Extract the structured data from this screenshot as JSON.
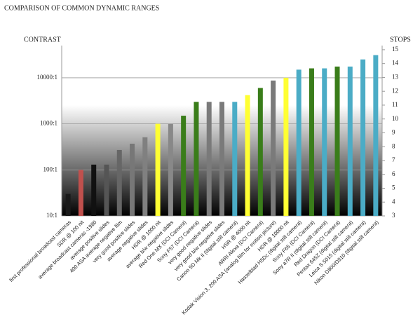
{
  "chart_data": {
    "type": "bar",
    "title": "COMPARISON OF COMMON DYNAMIC RANGES",
    "y_label": "CONTRAST",
    "y2_label": "STOPS",
    "log_scale": true,
    "grid": true,
    "ylim": [
      10,
      50000
    ],
    "yticks": [
      {
        "value": 10,
        "label": "10:1"
      },
      {
        "value": 100,
        "label": "100:1"
      },
      {
        "value": 1000,
        "label": "1000:1"
      },
      {
        "value": 10000,
        "label": "10000:1"
      }
    ],
    "y2lim": [
      3,
      15.3
    ],
    "y2ticks": [
      3,
      4,
      5,
      6,
      7,
      8,
      9,
      10,
      11,
      12,
      13,
      14,
      15
    ],
    "categories": [
      "first professional broadcast cameras",
      "SDR @ 100 nit",
      "average broadcast cameras -1980",
      "average positive slides",
      "400 ASA average negative film",
      "very good positive slides",
      "average negative slides",
      "HDR @ 1000 nit",
      "average b/w negative slides",
      "Red One MX (DCI Camera)",
      "Sony F57 (DCI Camera)",
      "very good negative slides",
      "very good b/w negative slides",
      "Canon 5D Mk II (digital still camera)",
      "HSR @ 4000 nit",
      "ARRI Alexa (DCI Camera)",
      "Kodak Vision 3, 200 ASA (analog film for motion picture)",
      "HDR @ 10000 nit",
      "Hasselblad H5Dc (digital still camera)",
      "Sony F65 (DCI Camera)",
      "Sony a7R II (digital still camera)",
      "Red Dragon (DCI Camera)",
      "Pentax 645Z (digital still camera)",
      "Leica S 5015 (digital still camera)",
      "Nikon D800/D810 (digital still camera)"
    ],
    "values": [
      30,
      100,
      130,
      130,
      270,
      370,
      510,
      1000,
      1000,
      1500,
      3000,
      3000,
      3000,
      3000,
      4200,
      6000,
      8700,
      10000,
      15000,
      16000,
      16000,
      17500,
      17500,
      25000,
      31000
    ],
    "colors": [
      "#1a1a1a",
      "#c0504d",
      "#111111",
      "#555555",
      "#666666",
      "#777777",
      "#808080",
      "#ffff33",
      "#888888",
      "#3a7d1a",
      "#3a7d1a",
      "#7a7a7a",
      "#7a7a7a",
      "#4bacc6",
      "#ffff33",
      "#3a7d1a",
      "#7a7a7a",
      "#ffff33",
      "#4bacc6",
      "#3a7d1a",
      "#4bacc6",
      "#3a7d1a",
      "#4bacc6",
      "#4bacc6",
      "#4bacc6"
    ]
  }
}
